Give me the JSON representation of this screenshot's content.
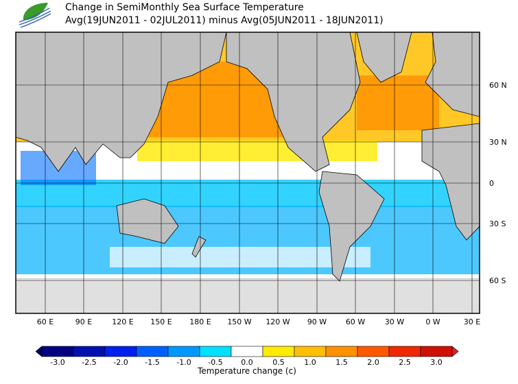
{
  "header": {
    "title": "Change in SemiMonthly Sea Surface Temperature",
    "subtitle": "Avg(19JUN2011 - 02JUL2011) minus Avg(05JUN2011 - 18JUN2011)",
    "logo": "leaf-wave-logo"
  },
  "map": {
    "lon_labels": [
      "60 E",
      "90 E",
      "120 E",
      "150 E",
      "180 E",
      "150 W",
      "120 W",
      "90 W",
      "60 W",
      "30 W",
      "0 W",
      "30 E"
    ],
    "lat_labels": [
      "60 N",
      "30 N",
      "0",
      "30 S",
      "60 S"
    ]
  },
  "colorbar": {
    "title": "Temperature change  (c)",
    "ticks": [
      "-3.0",
      "-2.5",
      "-2.0",
      "-1.5",
      "-1.0",
      "-0.5",
      "0.0",
      "0.5",
      "1.0",
      "1.5",
      "2.0",
      "2.5",
      "3.0"
    ],
    "colors": [
      "#000080",
      "#0010b0",
      "#0020f0",
      "#0060ff",
      "#0098ff",
      "#00e0ff",
      "#ffffff",
      "#ffea00",
      "#ffbe00",
      "#ff9000",
      "#ff5800",
      "#f02800",
      "#d01000"
    ],
    "under_color": "#000060",
    "over_color": "#e02020",
    "land_color": "#c0c0c0",
    "ice_color": "#e0e0e0"
  }
}
